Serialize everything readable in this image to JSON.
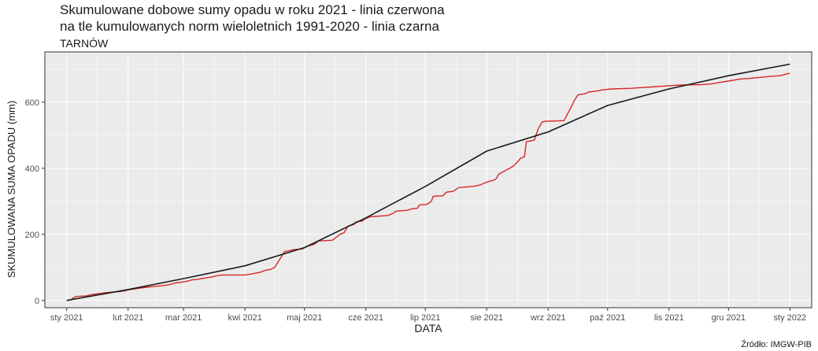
{
  "chart_data": {
    "type": "line",
    "title_lines": [
      "Skumulowane dobowe sumy opadu w roku 2021 - linia czerwona",
      "na tle kumulowanych norm wieloletnich 1991-2020 - linia czarna"
    ],
    "subtitle": "TARNÓW",
    "xlabel": "DATA",
    "ylabel": "SKUMULOWANA SUMA OPADU (mm)",
    "x_tick_labels": [
      "sty 2021",
      "lut 2021",
      "mar 2021",
      "kwi 2021",
      "maj 2021",
      "cze 2021",
      "lip 2021",
      "sie 2021",
      "wrz 2021",
      "paź 2021",
      "lis 2021",
      "gru 2021",
      "sty 2022"
    ],
    "x_tick_days": [
      0,
      31,
      59,
      90,
      120,
      151,
      181,
      212,
      243,
      273,
      304,
      334,
      365
    ],
    "y_ticks": [
      0,
      200,
      400,
      600
    ],
    "xlim": [
      -11,
      376
    ],
    "ylim": [
      -22,
      752
    ],
    "grid": true,
    "source": "Źródło: IMGW-PIB",
    "colors": {
      "observed": "#d62728",
      "norm": "#1a1a1a",
      "panel": "#ebebeb",
      "grid": "#ffffff"
    },
    "series": [
      {
        "key": "observed",
        "day": [
          0,
          2,
          4,
          5,
          10,
          12,
          14,
          18,
          20,
          27,
          30,
          31,
          40,
          44,
          47,
          50,
          52,
          55,
          60,
          62,
          63,
          66,
          68,
          70,
          72,
          74,
          75,
          77,
          78,
          84,
          90,
          95,
          98,
          100,
          103,
          105,
          110,
          112,
          113,
          115,
          119,
          121,
          125,
          126,
          127,
          134,
          138,
          140,
          142,
          145,
          146,
          149,
          151,
          153,
          162,
          165,
          166,
          172,
          173,
          174,
          177,
          178,
          182,
          184,
          185,
          190,
          191,
          192,
          195,
          197,
          198,
          205,
          209,
          210,
          213,
          216,
          217,
          218,
          222,
          225,
          226,
          228,
          229,
          231,
          232,
          236,
          238,
          240,
          241,
          251,
          255,
          256,
          258,
          261,
          262,
          263,
          269,
          270,
          275,
          285,
          290,
          295,
          300,
          305,
          310,
          320,
          325,
          330,
          335,
          340,
          345,
          350,
          355,
          360,
          365
        ],
        "value": [
          0,
          2,
          10,
          12,
          14,
          17,
          19,
          22,
          24,
          27,
          30,
          32,
          40,
          42,
          44,
          46,
          48,
          53,
          57,
          60,
          62,
          64,
          66,
          68,
          70,
          72,
          74,
          76,
          77,
          77,
          77,
          82,
          86,
          91,
          94,
          100,
          148,
          150,
          152,
          154,
          156,
          163,
          170,
          175,
          180,
          182,
          200,
          205,
          225,
          230,
          238,
          240,
          248,
          253,
          257,
          264,
          270,
          273,
          275,
          277,
          279,
          289,
          291,
          300,
          315,
          317,
          325,
          328,
          330,
          338,
          342,
          345,
          350,
          353,
          360,
          365,
          370,
          382,
          395,
          405,
          410,
          422,
          430,
          435,
          480,
          485,
          520,
          540,
          542,
          544,
          590,
          603,
          622,
          625,
          626,
          630,
          635,
          637,
          640,
          642,
          644,
          646,
          648,
          650,
          652,
          653,
          655,
          660,
          665,
          670,
          672,
          675,
          678,
          680,
          688
        ]
      },
      {
        "key": "norm",
        "day": [
          0,
          31,
          59,
          90,
          120,
          151,
          181,
          212,
          243,
          273,
          304,
          334,
          365
        ],
        "value": [
          0,
          33,
          66,
          105,
          160,
          250,
          345,
          452,
          510,
          590,
          640,
          680,
          715
        ]
      }
    ]
  }
}
